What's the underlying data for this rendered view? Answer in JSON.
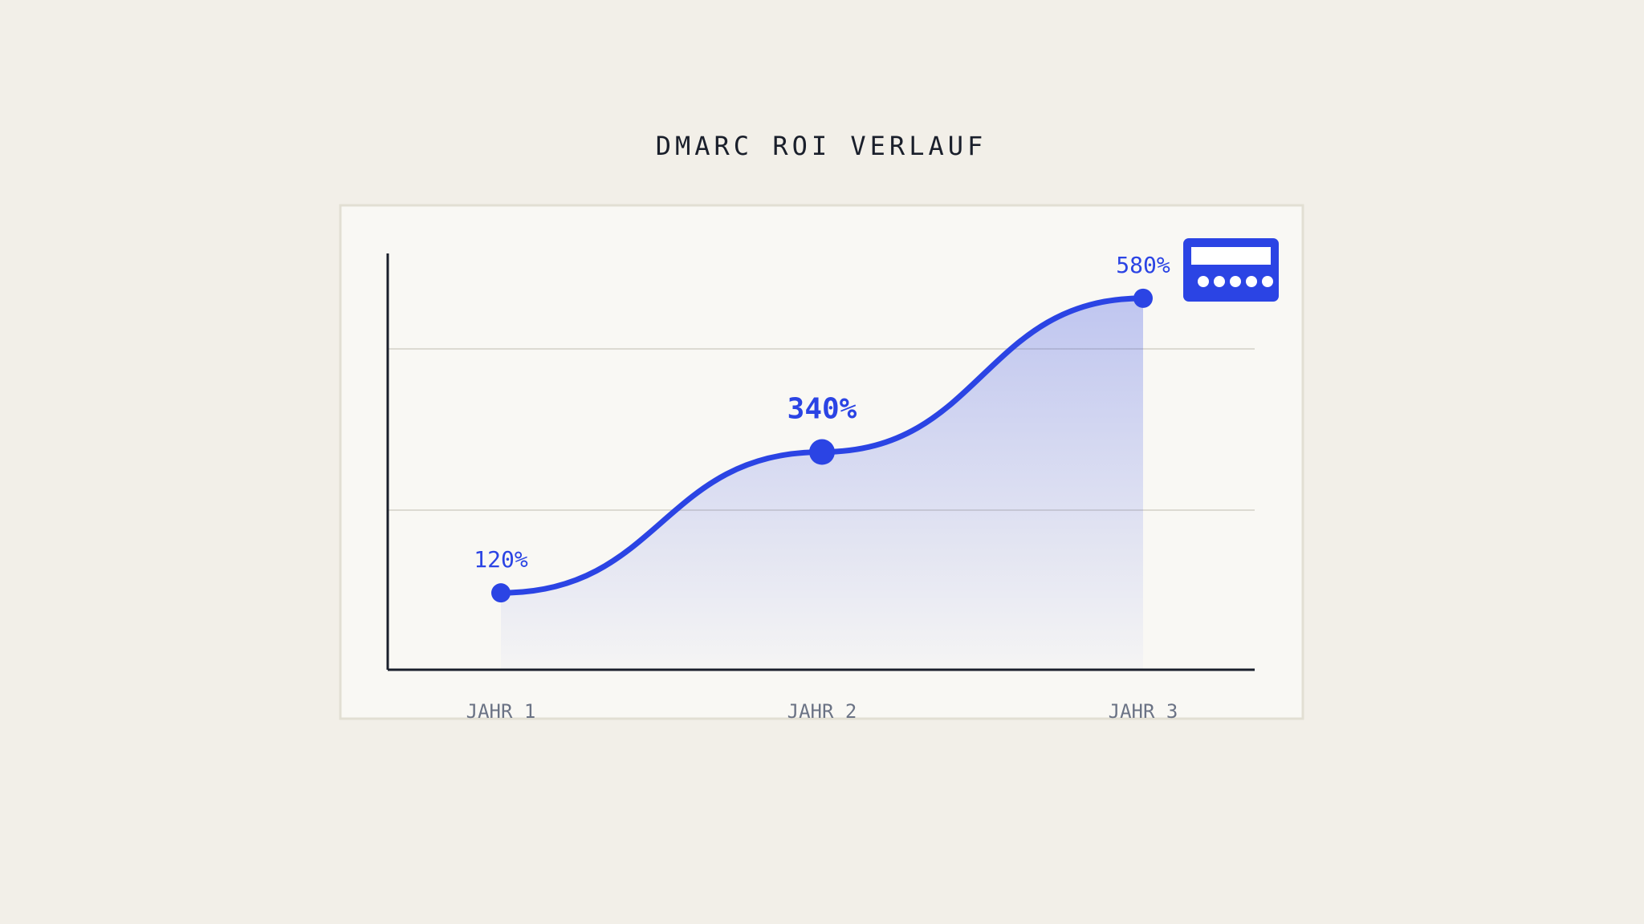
{
  "chart_data": {
    "type": "line",
    "title": "DMARC ROI VERLAUF",
    "categories": [
      "JAHR 1",
      "JAHR 2",
      "JAHR 3"
    ],
    "series": [
      {
        "name": "ROI",
        "color": "#2b44e4",
        "values": [
          120,
          340,
          580
        ],
        "value_labels": [
          "120%",
          "340%",
          "580%"
        ]
      }
    ],
    "ylim": [
      0,
      650
    ]
  }
}
